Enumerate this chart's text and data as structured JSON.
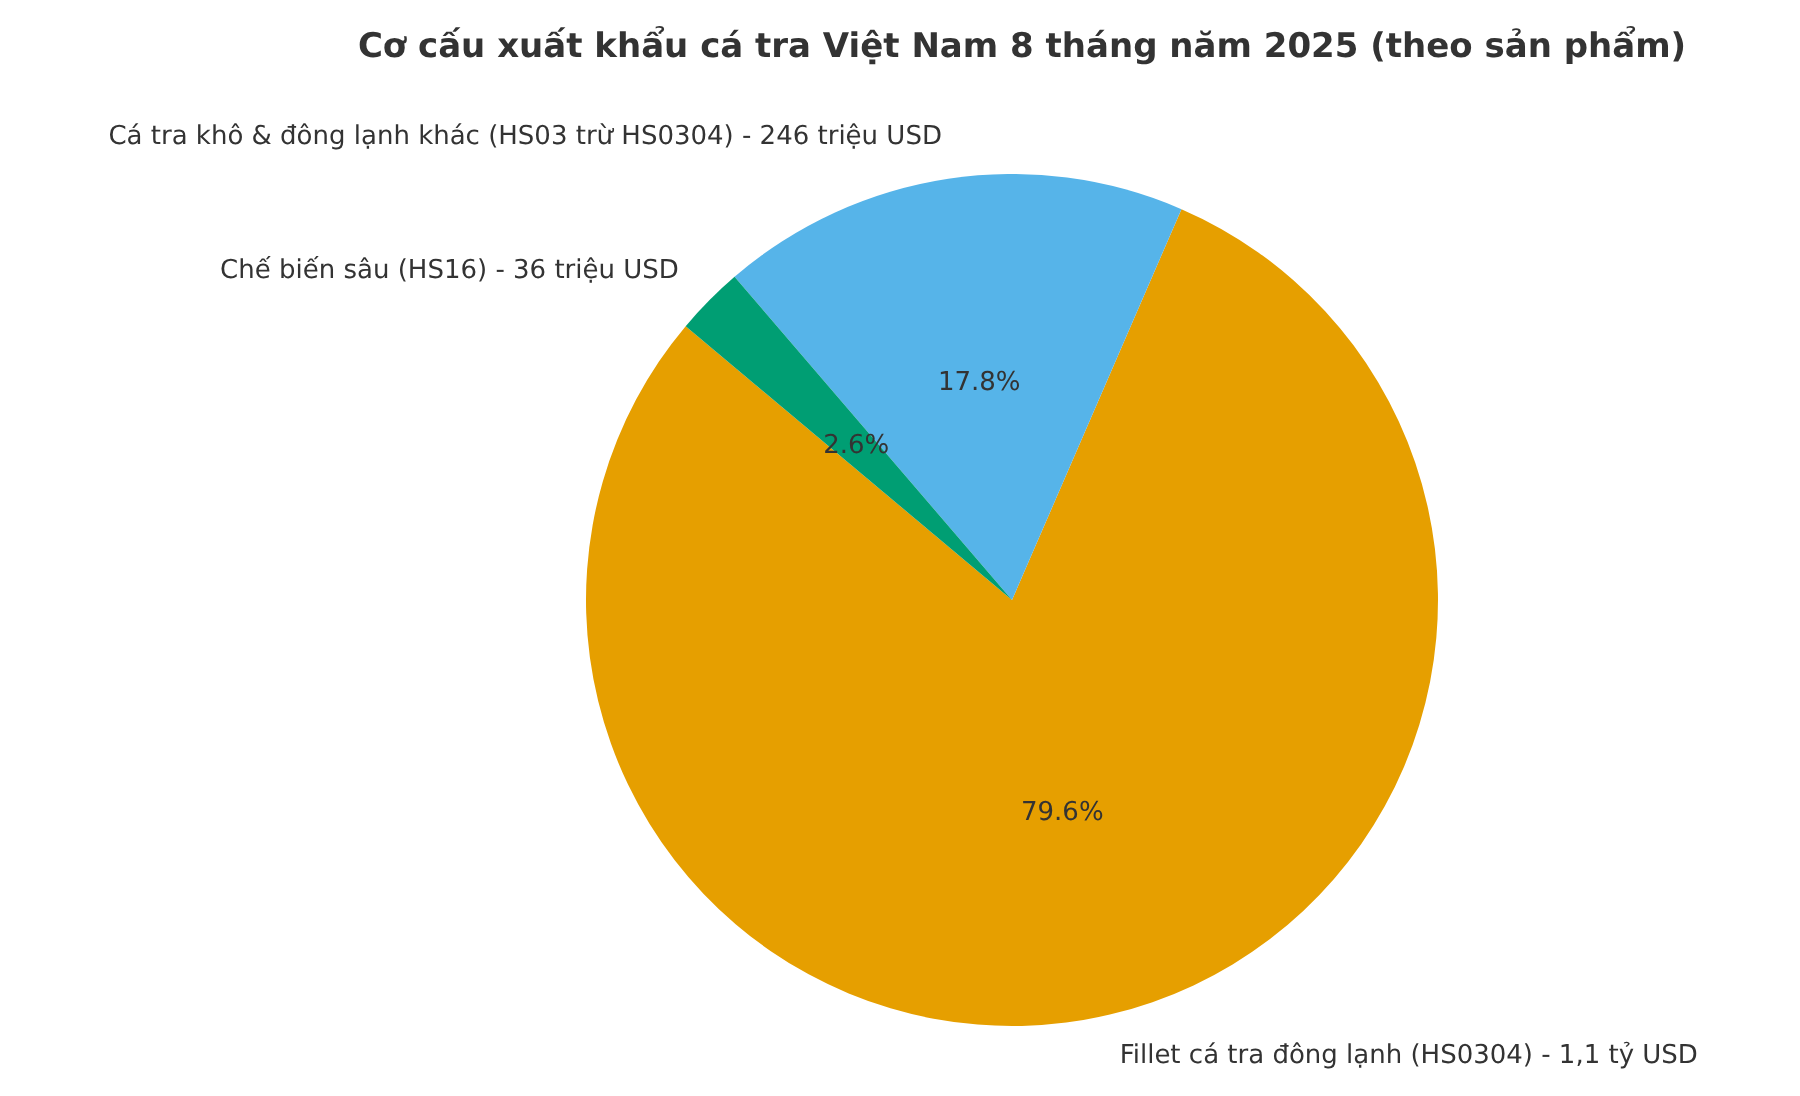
{
  "chart_data": {
    "type": "pie",
    "title": "Cơ cấu xuất khẩu cá tra Việt Nam 8 tháng năm 2025 (theo sản phẩm)",
    "categories": [
      "Fillet cá tra đông lạnh (HS0304) - 1,1 tỷ USD",
      "Cá tra khô & đông lạnh khác (HS03 trừ HS0304) - 246 triệu USD",
      "Chế biến sâu (HS16) - 36 triệu USD"
    ],
    "values": [
      79.6,
      17.8,
      2.6
    ],
    "colors": [
      "#e69f00",
      "#56b4e9",
      "#009e73"
    ],
    "value_labels": [
      "79.6%",
      "17.8%",
      "2.6%"
    ],
    "legend": false
  }
}
